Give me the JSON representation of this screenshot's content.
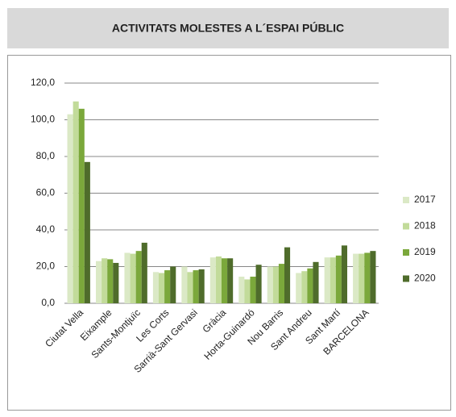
{
  "chart_data": {
    "type": "bar",
    "title": "ACTIVITATS MOLESTES A L´ESPAI PÚBLIC",
    "categories": [
      "Ciutat Vella",
      "Eixample",
      "Sants-Montjuïc",
      "Les Corts",
      "Sarrià-Sant Gervasi",
      "Gràcia",
      "Horta-Guinardó",
      "Nou Barris",
      "Sant Andreu",
      "Sant Martí",
      "BARCELONA"
    ],
    "series": [
      {
        "name": "2017",
        "color": "#dbe9c6",
        "values": [
          103,
          23,
          27.5,
          17,
          20,
          25,
          14.5,
          20,
          16.5,
          25,
          27
        ]
      },
      {
        "name": "2018",
        "color": "#c2db9a",
        "values": [
          110,
          24.5,
          27,
          16.5,
          17,
          25.5,
          13,
          20,
          17.5,
          25,
          27
        ]
      },
      {
        "name": "2019",
        "color": "#7ba83b",
        "values": [
          106,
          24,
          28.5,
          18,
          18,
          24.5,
          14.5,
          21.5,
          19,
          26,
          27.5
        ]
      },
      {
        "name": "2020",
        "color": "#4f6c2b",
        "values": [
          77,
          22,
          33,
          20,
          18.5,
          24.5,
          21,
          30.5,
          22.5,
          31.5,
          28.5
        ]
      }
    ],
    "ylim": [
      0,
      120
    ],
    "yticks": [
      {
        "value": 0,
        "label": "0,0"
      },
      {
        "value": 20,
        "label": "20,0"
      },
      {
        "value": 40,
        "label": "40,0"
      },
      {
        "value": 60,
        "label": "60,0"
      },
      {
        "value": 80,
        "label": "80,0"
      },
      {
        "value": 100,
        "label": "100,0"
      },
      {
        "value": 120,
        "label": "120,0"
      }
    ],
    "grid": true,
    "legend": "right"
  }
}
